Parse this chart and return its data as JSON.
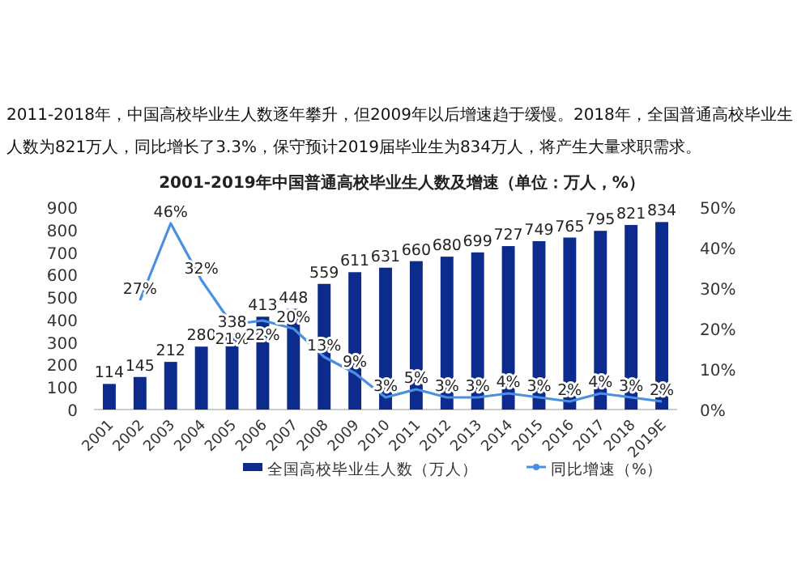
{
  "chart_data": {
    "type": "bar",
    "title": "2001-2019年中国普通高校毕业生人数及增速（单位：万人，%）",
    "annotations": [
      "2011-2018年，中国高校毕业生人数逐年攀升，但2009年以后增速趋于缓慢。2018年，全国普通高校毕业生人数为821万人，同比增长了3.3%，保守预计2019届毕业生为834万人，将产生大量求职需求。"
    ],
    "categories": [
      "2001",
      "2002",
      "2003",
      "2004",
      "2005",
      "2006",
      "2007",
      "2008",
      "2009",
      "2010",
      "2011",
      "2012",
      "2013",
      "2014",
      "2015",
      "2016",
      "2017",
      "2018",
      "2019E"
    ],
    "series": [
      {
        "name": "全国高校毕业生人数（万人）",
        "color": "#0d2b8c",
        "values": [
          114,
          145,
          212,
          280,
          338,
          413,
          448,
          559,
          611,
          631,
          660,
          680,
          699,
          727,
          749,
          765,
          795,
          821,
          834
        ],
        "value_labels": [
          "114",
          "145",
          "212",
          "280",
          "338",
          "413",
          "448",
          "559",
          "611",
          "631",
          "660",
          "680",
          "699",
          "727",
          "749",
          "765",
          "795",
          "821",
          "834"
        ]
      },
      {
        "name": "同比增速（%）",
        "type": "line",
        "axis": "y2",
        "color": "#4a90e2",
        "values": [
          null,
          27,
          46,
          32,
          21,
          22,
          20,
          13,
          9,
          3,
          5,
          3,
          3,
          4,
          3,
          2,
          4,
          3,
          2
        ],
        "value_labels": [
          null,
          "27%",
          "46%",
          "32%",
          "21%",
          "22%",
          "20%",
          "13%",
          "9%",
          "3%",
          "5%",
          "3%",
          "3%",
          "4%",
          "3%",
          "2%",
          "4%",
          "3%",
          "2%"
        ]
      }
    ],
    "ylim": [
      0,
      900
    ],
    "yticks": [
      0,
      100,
      200,
      300,
      400,
      500,
      600,
      700,
      800,
      900
    ],
    "y2lim": [
      0,
      50
    ],
    "y2ticks": [
      {
        "value": 0,
        "label": "0%"
      },
      {
        "value": 10,
        "label": "10%"
      },
      {
        "value": 20,
        "label": "20%"
      },
      {
        "value": 30,
        "label": "30%"
      },
      {
        "value": 40,
        "label": "40%"
      },
      {
        "value": 50,
        "label": "50%"
      }
    ],
    "grid": false,
    "legend": "bottom"
  }
}
